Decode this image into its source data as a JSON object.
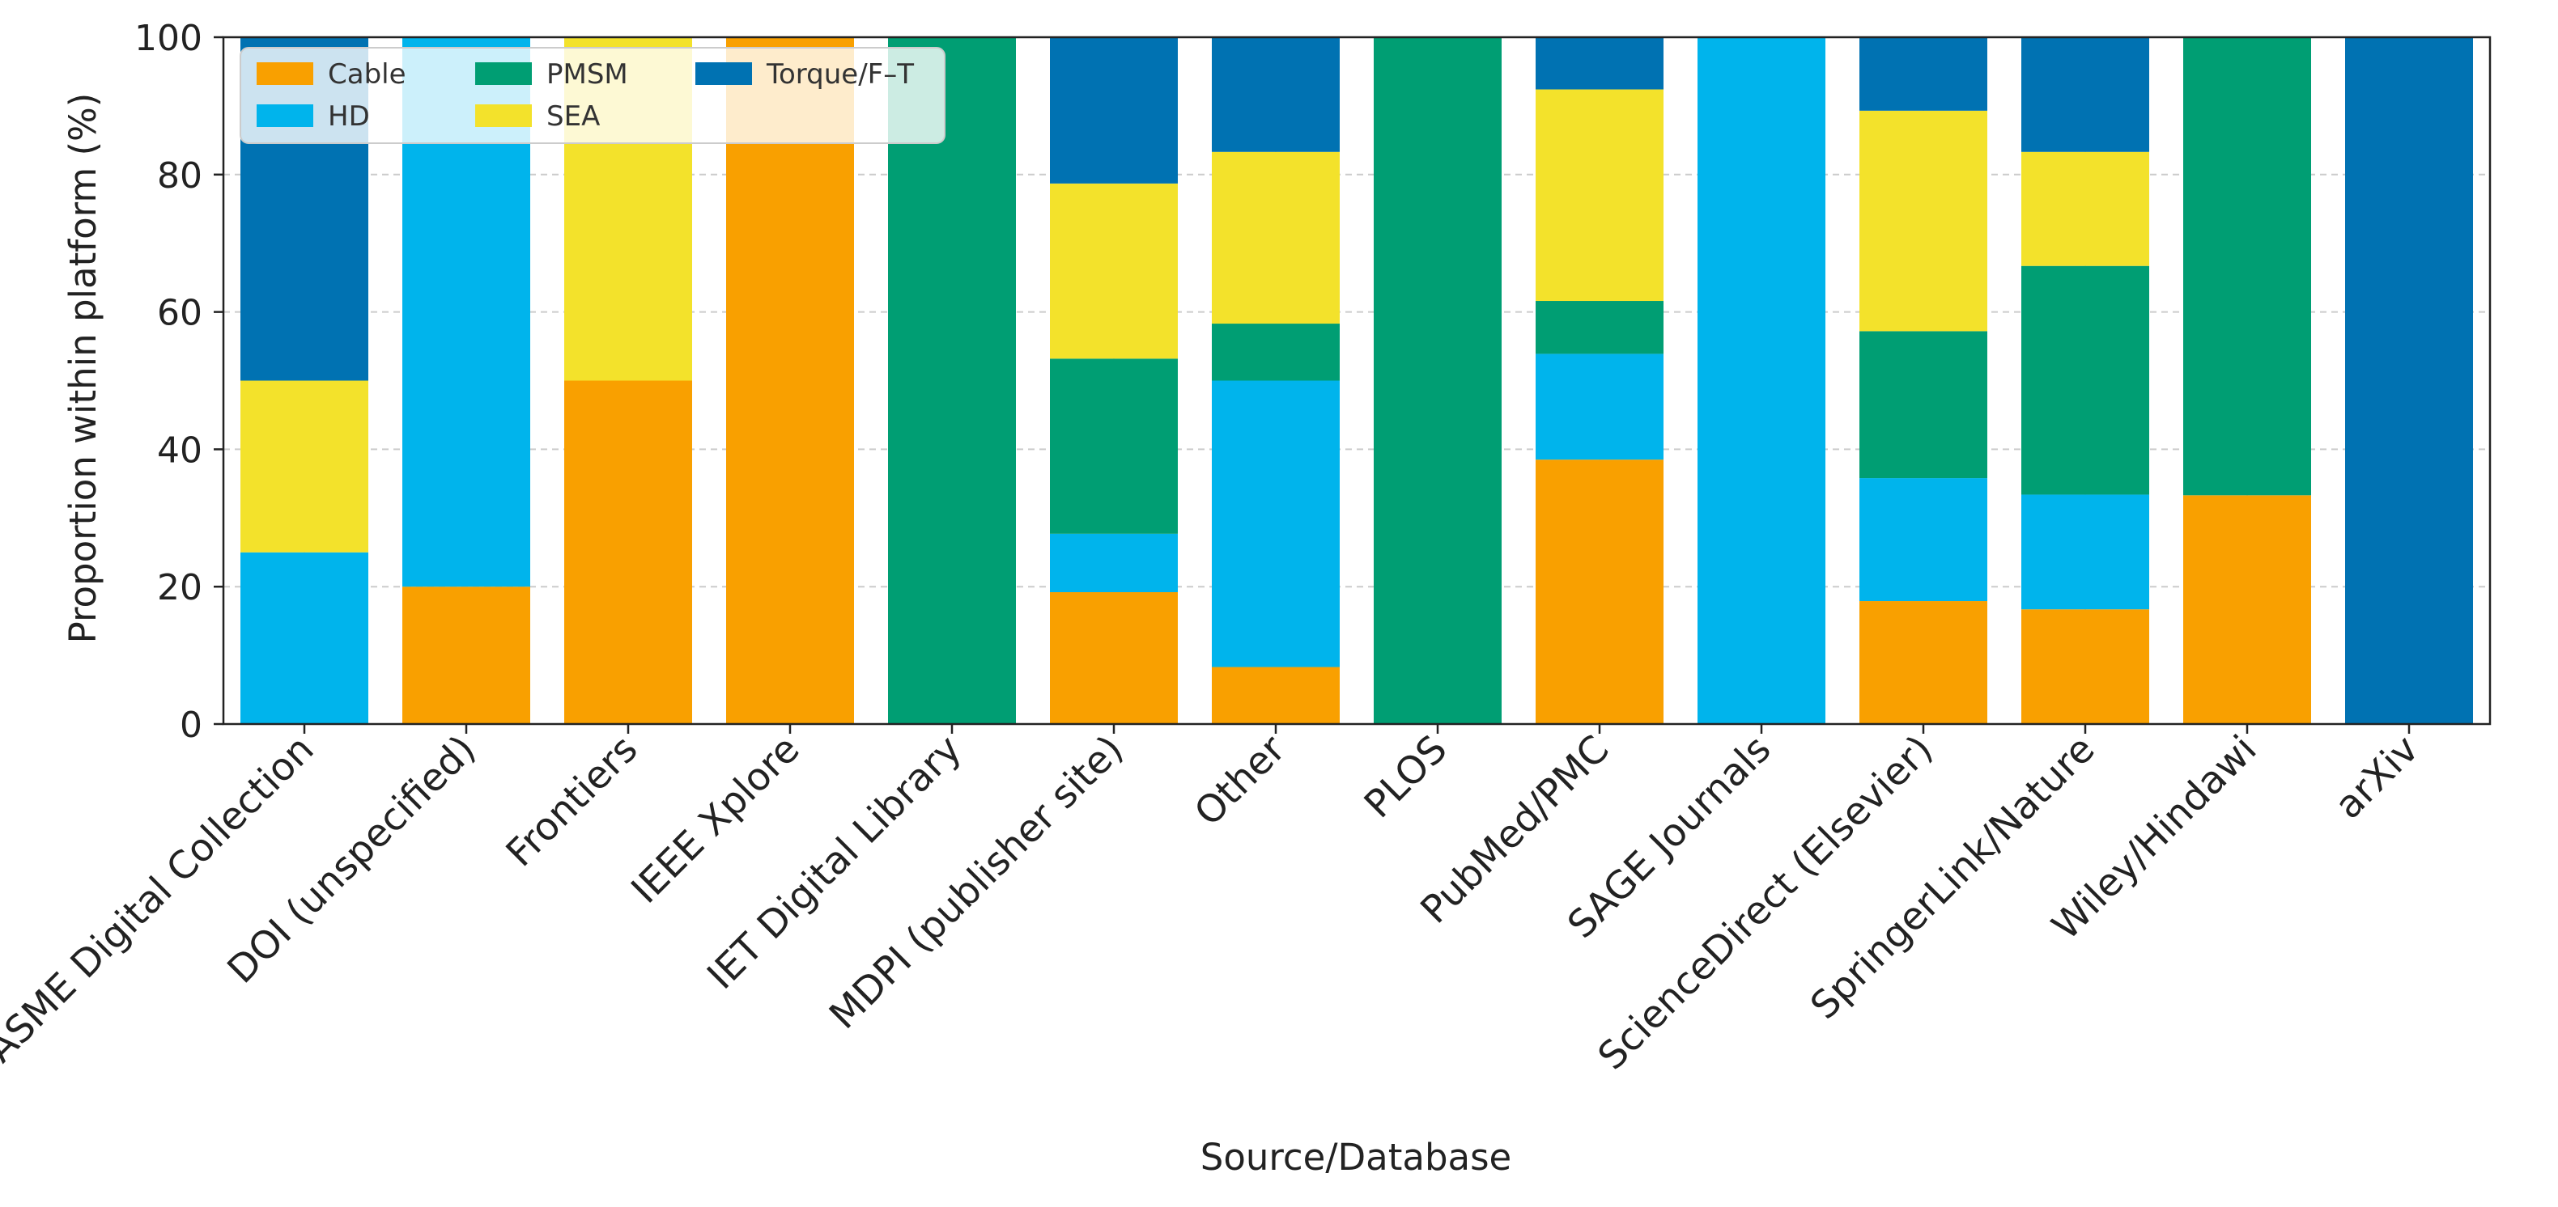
{
  "chart_data": {
    "type": "bar",
    "stacked": true,
    "title": "",
    "xlabel": "Source/Database",
    "ylabel": "Proportion within platform (%)",
    "ylim": [
      0,
      100
    ],
    "yticks": [
      0,
      20,
      40,
      60,
      80,
      100
    ],
    "grid": true,
    "legend_position": "top-left",
    "categories": [
      "ASME Digital Collection",
      "DOI (unspecified)",
      "Frontiers",
      "IEEE Xplore",
      "IET Digital Library",
      "MDPI (publisher site)",
      "Other",
      "PLOS",
      "PubMed/PMC",
      "SAGE Journals",
      "ScienceDirect (Elsevier)",
      "SpringerLink/Nature",
      "Wiley/Hindawi",
      "arXiv"
    ],
    "series": [
      {
        "name": "Cable",
        "color": "#F9A000",
        "values": [
          0,
          20,
          50,
          100,
          0,
          19.2,
          8.3,
          0,
          38.5,
          0,
          17.9,
          16.7,
          33.3,
          0
        ]
      },
      {
        "name": "HD",
        "color": "#00B4EC",
        "values": [
          25,
          80,
          0,
          0,
          0,
          8.5,
          41.7,
          0,
          15.4,
          100,
          17.9,
          16.7,
          0,
          0
        ]
      },
      {
        "name": "PMSM",
        "color": "#009E73",
        "values": [
          0,
          0,
          0,
          0,
          100,
          25.5,
          8.3,
          100,
          7.7,
          0,
          21.4,
          33.3,
          66.7,
          0
        ]
      },
      {
        "name": "SEA",
        "color": "#F3E22B",
        "values": [
          25,
          0,
          50,
          0,
          0,
          25.5,
          25.0,
          0,
          30.8,
          0,
          32.1,
          16.6,
          0,
          0
        ]
      },
      {
        "name": "Torque/F–T",
        "color": "#0072B2",
        "values": [
          50,
          0,
          0,
          0,
          0,
          21.3,
          16.7,
          0,
          7.6,
          0,
          10.7,
          16.7,
          0,
          100
        ]
      }
    ]
  }
}
